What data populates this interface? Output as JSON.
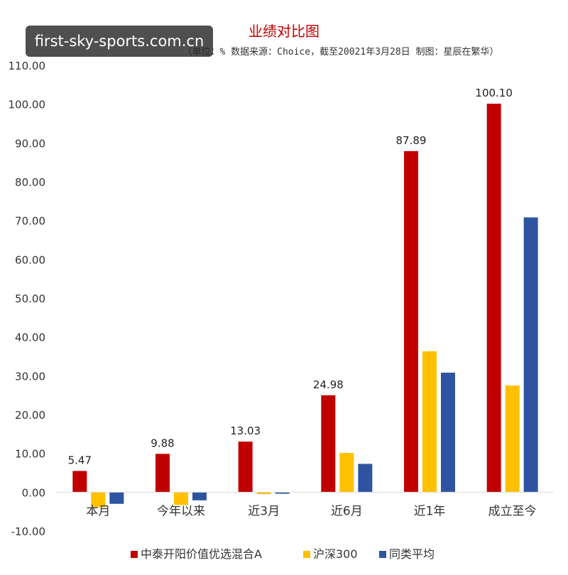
{
  "watermark": "first-sky-sports.com.cn",
  "chart_data": {
    "type": "bar",
    "title": "业绩对比图",
    "subtitle": "（单位：%   数据来源：Choice，截至20021年3月28日  制图：星辰在繁华）",
    "categories": [
      "本月",
      "今年以来",
      "近3月",
      "近6月",
      "近1年",
      "成立至今"
    ],
    "series": [
      {
        "name": "中泰开阳价值优选混合A",
        "color": "#c00000",
        "values": [
          5.47,
          9.88,
          13.03,
          24.98,
          87.89,
          100.1
        ],
        "labels": [
          "5.47",
          "9.88",
          "13.03",
          "24.98",
          "87.89",
          "100.10"
        ]
      },
      {
        "name": "沪深300",
        "color": "#ffc000",
        "values": [
          -3.9,
          -3.3,
          -0.5,
          10.1,
          36.3,
          27.5
        ]
      },
      {
        "name": "同类平均",
        "color": "#2e54a1",
        "values": [
          -3.0,
          -2.1,
          -0.4,
          7.3,
          30.8,
          70.8
        ]
      }
    ],
    "ylim": [
      -10,
      110
    ],
    "ytick_step": 10,
    "ytick_labels": [
      "-10.00",
      "0.00",
      "10.00",
      "20.00",
      "30.00",
      "40.00",
      "50.00",
      "60.00",
      "70.00",
      "80.00",
      "90.00",
      "100.00",
      "110.00"
    ],
    "legend_position": "bottom",
    "grid": false
  }
}
